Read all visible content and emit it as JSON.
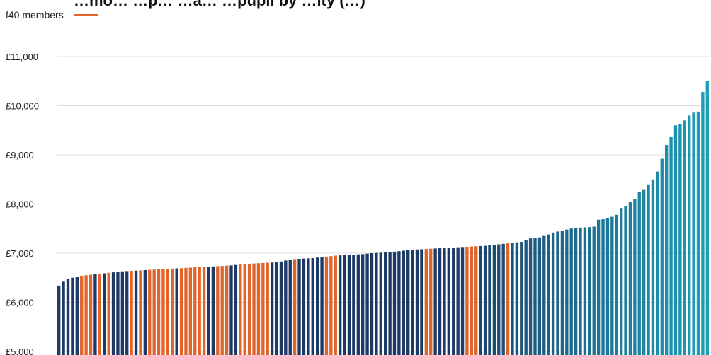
{
  "colors": {
    "highlight": "#e0652d",
    "base_dark": "#1d3a66",
    "base_light": "#1ba0b8",
    "grid": "#dddddd"
  },
  "chart_data": {
    "type": "bar",
    "title": "…mo… …p… …a… …pupil by …ity (…)",
    "legend": [
      {
        "label": "f40 members",
        "color": "#e0652d"
      }
    ],
    "legend_placement": "top-left",
    "xlabel": "",
    "ylabel": "",
    "ylim": [
      5000,
      11000
    ],
    "yticks": [
      {
        "value": 5000,
        "label": "£5,000"
      },
      {
        "value": 6000,
        "label": "£6,000"
      },
      {
        "value": 7000,
        "label": "£7,000"
      },
      {
        "value": 8000,
        "label": "£8,000"
      },
      {
        "value": 9000,
        "label": "£9,000"
      },
      {
        "value": 10000,
        "label": "£10,000"
      },
      {
        "value": 11000,
        "label": "£11,000"
      }
    ],
    "grid": true,
    "sorted": "ascending",
    "values": [
      6340,
      6420,
      6480,
      6500,
      6520,
      6540,
      6550,
      6560,
      6570,
      6580,
      6590,
      6600,
      6610,
      6620,
      6630,
      6635,
      6640,
      6645,
      6650,
      6655,
      6660,
      6665,
      6670,
      6675,
      6680,
      6685,
      6690,
      6695,
      6700,
      6705,
      6710,
      6715,
      6720,
      6725,
      6730,
      6735,
      6740,
      6745,
      6750,
      6760,
      6770,
      6780,
      6785,
      6790,
      6795,
      6800,
      6805,
      6810,
      6820,
      6830,
      6850,
      6870,
      6880,
      6885,
      6890,
      6895,
      6900,
      6910,
      6920,
      6930,
      6940,
      6950,
      6955,
      6960,
      6965,
      6970,
      6975,
      6980,
      6990,
      7000,
      7005,
      7010,
      7015,
      7020,
      7030,
      7040,
      7050,
      7060,
      7070,
      7075,
      7080,
      7085,
      7090,
      7095,
      7100,
      7105,
      7110,
      7115,
      7120,
      7125,
      7130,
      7135,
      7140,
      7145,
      7150,
      7160,
      7170,
      7180,
      7190,
      7200,
      7210,
      7220,
      7230,
      7260,
      7300,
      7310,
      7320,
      7350,
      7380,
      7420,
      7440,
      7460,
      7480,
      7500,
      7510,
      7520,
      7525,
      7530,
      7540,
      7680,
      7700,
      7720,
      7740,
      7780,
      7920,
      7960,
      8040,
      8100,
      8240,
      8300,
      8400,
      8500,
      8660,
      8920,
      9200,
      9360,
      9600,
      9620,
      9700,
      9800,
      9860,
      9880,
      10280,
      10500
    ],
    "highlighted_indices": [
      5,
      6,
      7,
      9,
      11,
      16,
      18,
      20,
      21,
      22,
      23,
      24,
      25,
      27,
      28,
      29,
      30,
      31,
      32,
      35,
      36,
      37,
      40,
      41,
      42,
      43,
      44,
      45,
      46,
      52,
      59,
      60,
      61,
      81,
      82,
      90,
      91,
      92,
      99
    ]
  }
}
